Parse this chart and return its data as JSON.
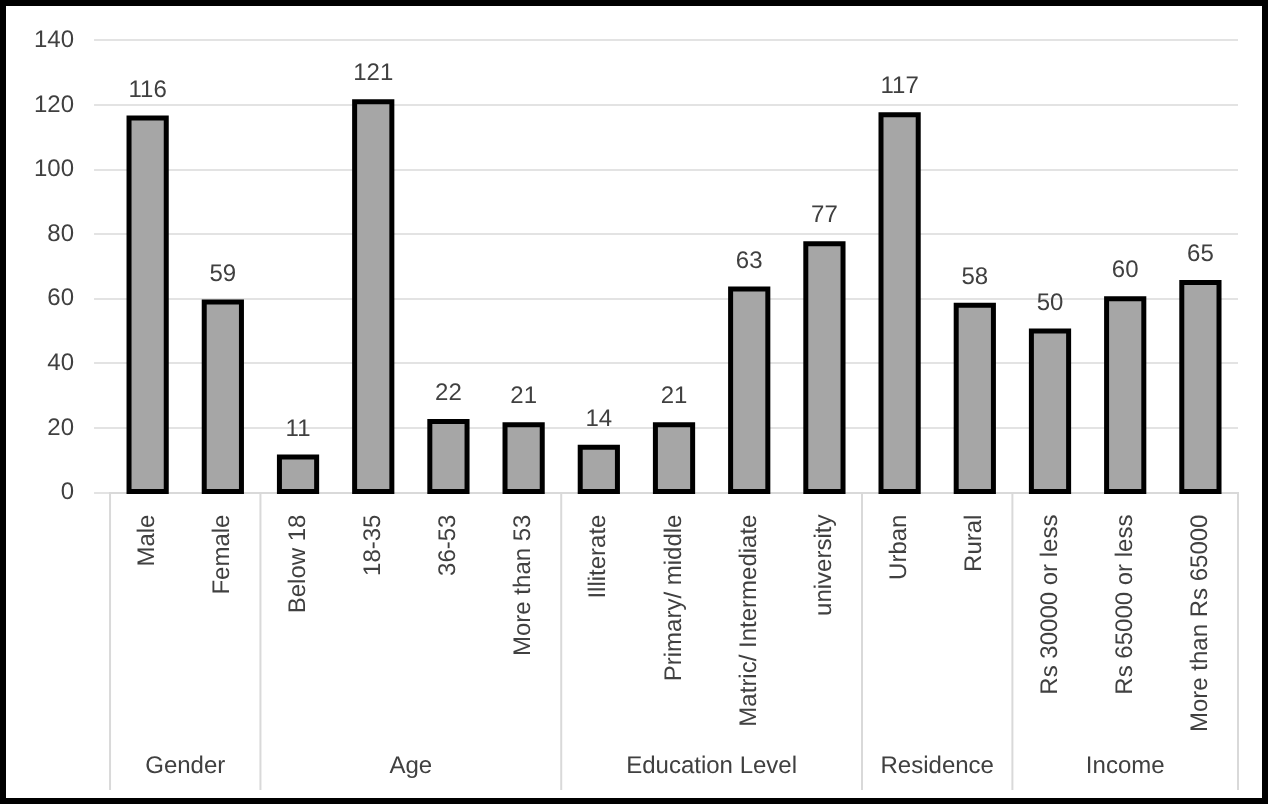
{
  "chart_data": {
    "type": "bar",
    "categories": [
      "Male",
      "Female",
      "Below 18",
      "18-35",
      "36-53",
      "More than 53",
      "Illiterate",
      "Primary/ middle",
      "Matric/ Intermediate",
      "university",
      "Urban",
      "Rural",
      "Rs 30000 or less",
      "Rs 65000 or less",
      "More than Rs 65000"
    ],
    "values": [
      116,
      59,
      11,
      121,
      22,
      21,
      14,
      21,
      63,
      77,
      117,
      58,
      50,
      60,
      65
    ],
    "color": "#a6a6a6",
    "ylim": [
      0,
      140
    ],
    "yticks": [
      0,
      20,
      40,
      60,
      80,
      100,
      120,
      140
    ],
    "grid": "y",
    "legend": false,
    "data_labels": true,
    "annotations": [
      "Gender",
      "Age",
      "Education Level",
      "Residence",
      "Income"
    ]
  }
}
